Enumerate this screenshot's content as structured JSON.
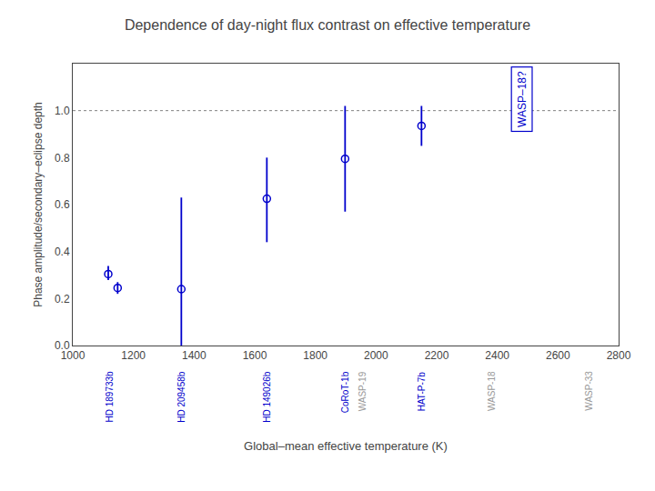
{
  "chart_data": {
    "type": "scatter",
    "title": "Dependence of day-night flux contrast on effective temperature",
    "xlabel": "Global–mean effective temperature (K)",
    "ylabel": "Phase amplitude/secondary–eclipse depth",
    "x": [
      1117,
      1148,
      1358,
      1640,
      1898,
      2150
    ],
    "values": [
      0.304,
      0.245,
      0.24,
      0.625,
      0.795,
      0.935
    ],
    "error_lo": [
      0.025,
      0.025,
      0.24,
      0.185,
      0.225,
      0.085
    ],
    "error_hi": [
      0.035,
      0.025,
      0.39,
      0.175,
      0.225,
      0.085
    ],
    "color": "#0000CC",
    "marker": "circle-open",
    "xlim": [
      1000,
      2800
    ],
    "ylim": [
      0,
      1.2
    ],
    "xticks": [
      1000,
      1200,
      1400,
      1600,
      1800,
      2000,
      2200,
      2400,
      2600,
      2800
    ],
    "yticks": [
      {
        "value": 0,
        "label": "0.0"
      },
      0.2,
      0.4,
      0.6,
      0.8,
      {
        "value": 1.0,
        "label": "1.0"
      }
    ],
    "grid": false,
    "hline": {
      "y": 1.0,
      "line_style": "dot"
    },
    "axis_annotations": [
      {
        "text": "HD 189733b",
        "x": 1120,
        "color": "#0000CC"
      },
      {
        "text": "HD 209458b",
        "x": 1358,
        "color": "#0000CC"
      },
      {
        "text": "HD 149026b",
        "x": 1640,
        "color": "#0000CC"
      },
      {
        "text": "CoRoT-1b",
        "x": 1898,
        "color": "#0000CC"
      },
      {
        "text": "WASP-19",
        "x": 1955,
        "color": "#999999"
      },
      {
        "text": "HAT-P-7b",
        "x": 2150,
        "color": "#0000CC"
      },
      {
        "text": "WASP-18",
        "x": 2380,
        "color": "#999999"
      },
      {
        "text": "WASP-33",
        "x": 2700,
        "color": "#999999"
      }
    ],
    "box_annotation": {
      "text": "WASP–18?",
      "x": 2480,
      "y": 1.05,
      "color": "#0000CC"
    }
  }
}
